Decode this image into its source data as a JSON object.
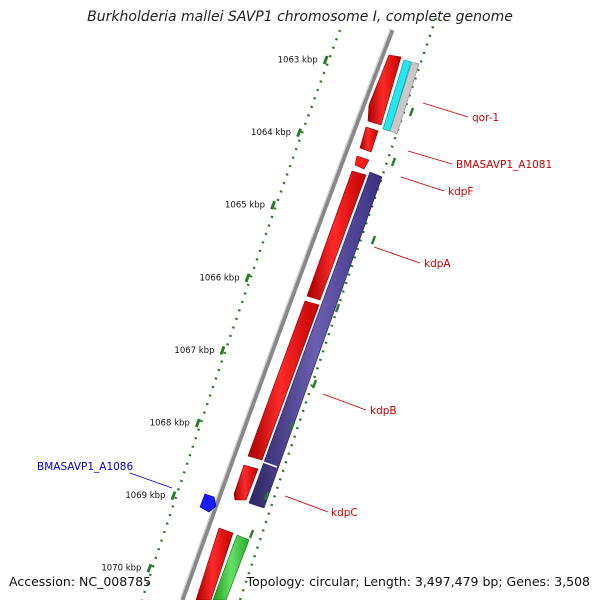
{
  "title": "Burkholderia mallei SAVP1 chromosome I, complete genome",
  "footer": {
    "accession": "Accession: NC_008785",
    "summary": "Topology: circular; Length: 3,497,479 bp; Genes: 3,508"
  },
  "ticks": [
    {
      "label": "1063 kbp",
      "pos": 1063
    },
    {
      "label": "1064 kbp",
      "pos": 1064
    },
    {
      "label": "1065 kbp",
      "pos": 1065
    },
    {
      "label": "1066 kbp",
      "pos": 1066
    },
    {
      "label": "1067 kbp",
      "pos": 1067
    },
    {
      "label": "1068 kbp",
      "pos": 1068
    },
    {
      "label": "1069 kbp",
      "pos": 1069
    },
    {
      "label": "1070 kbp",
      "pos": 1070
    }
  ],
  "genes": [
    {
      "name": "qor-1",
      "color": "#cc0000"
    },
    {
      "name": "BMASAVP1_A1081",
      "color": "#cc0000"
    },
    {
      "name": "kdpF",
      "color": "#cc0000"
    },
    {
      "name": "kdpA",
      "color": "#cc0000"
    },
    {
      "name": "kdpB",
      "color": "#cc0000"
    },
    {
      "name": "kdpC",
      "color": "#cc0000"
    },
    {
      "name": "BMASAVP1_A1086",
      "color": "#0000cc"
    }
  ],
  "colors": {
    "cds": "#ff0000",
    "trna": "#00ffff",
    "pseudo": "#c0c0c0",
    "rrna": "#4b3f8c",
    "misc": "#33cc33",
    "blue_gene": "#0000ff",
    "tick": "#2d7a2d",
    "backbone": "#888888"
  }
}
